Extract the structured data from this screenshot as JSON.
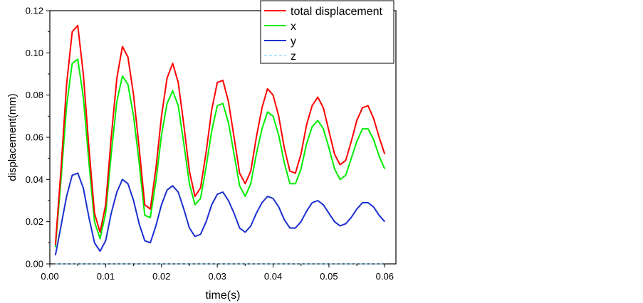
{
  "chart_data": {
    "type": "line",
    "title": "",
    "xlabel": "time(s)",
    "ylabel": "displacement(mm)",
    "xlim": [
      0.0,
      0.062
    ],
    "ylim": [
      0.0,
      0.12
    ],
    "xticks": [
      "0.00",
      "0.01",
      "0.02",
      "0.03",
      "0.04",
      "0.05",
      "0.06"
    ],
    "yticks": [
      "0.00",
      "0.02",
      "0.04",
      "0.06",
      "0.08",
      "0.10",
      "0.12"
    ],
    "grid": false,
    "legend_position": "top-right",
    "x": [
      0.001,
      0.002,
      0.003,
      0.004,
      0.005,
      0.006,
      0.007,
      0.008,
      0.009,
      0.01,
      0.011,
      0.012,
      0.013,
      0.014,
      0.015,
      0.016,
      0.017,
      0.018,
      0.019,
      0.02,
      0.021,
      0.022,
      0.023,
      0.024,
      0.025,
      0.026,
      0.027,
      0.028,
      0.029,
      0.03,
      0.031,
      0.032,
      0.033,
      0.034,
      0.035,
      0.036,
      0.037,
      0.038,
      0.039,
      0.04,
      0.041,
      0.042,
      0.043,
      0.044,
      0.045,
      0.046,
      0.047,
      0.048,
      0.049,
      0.05,
      0.051,
      0.052,
      0.053,
      0.054,
      0.055,
      0.056,
      0.057,
      0.058,
      0.059,
      0.06
    ],
    "series": [
      {
        "name": "total displacement",
        "color": "#ff0000",
        "values": [
          0.009,
          0.045,
          0.085,
          0.11,
          0.113,
          0.09,
          0.055,
          0.024,
          0.015,
          0.028,
          0.06,
          0.088,
          0.103,
          0.098,
          0.08,
          0.055,
          0.028,
          0.026,
          0.045,
          0.07,
          0.088,
          0.095,
          0.086,
          0.066,
          0.044,
          0.032,
          0.036,
          0.053,
          0.073,
          0.086,
          0.087,
          0.077,
          0.06,
          0.043,
          0.038,
          0.044,
          0.06,
          0.074,
          0.083,
          0.08,
          0.07,
          0.055,
          0.044,
          0.043,
          0.052,
          0.066,
          0.075,
          0.079,
          0.074,
          0.063,
          0.052,
          0.047,
          0.049,
          0.058,
          0.068,
          0.074,
          0.075,
          0.069,
          0.06,
          0.052
        ]
      },
      {
        "name": "x",
        "color": "#00ee00",
        "values": [
          0.008,
          0.04,
          0.075,
          0.095,
          0.097,
          0.079,
          0.048,
          0.02,
          0.012,
          0.024,
          0.052,
          0.077,
          0.089,
          0.085,
          0.07,
          0.048,
          0.023,
          0.022,
          0.039,
          0.061,
          0.076,
          0.082,
          0.075,
          0.057,
          0.038,
          0.028,
          0.031,
          0.046,
          0.063,
          0.075,
          0.076,
          0.067,
          0.052,
          0.037,
          0.032,
          0.038,
          0.052,
          0.064,
          0.072,
          0.07,
          0.061,
          0.048,
          0.038,
          0.038,
          0.045,
          0.057,
          0.065,
          0.068,
          0.064,
          0.055,
          0.045,
          0.04,
          0.042,
          0.05,
          0.058,
          0.064,
          0.064,
          0.059,
          0.051,
          0.045
        ]
      },
      {
        "name": "y",
        "color": "#1b2fd0",
        "values": [
          0.004,
          0.018,
          0.032,
          0.042,
          0.043,
          0.036,
          0.022,
          0.01,
          0.006,
          0.011,
          0.024,
          0.034,
          0.04,
          0.038,
          0.03,
          0.019,
          0.011,
          0.01,
          0.018,
          0.028,
          0.035,
          0.037,
          0.034,
          0.026,
          0.017,
          0.013,
          0.014,
          0.02,
          0.028,
          0.033,
          0.034,
          0.03,
          0.024,
          0.017,
          0.015,
          0.018,
          0.024,
          0.029,
          0.032,
          0.031,
          0.027,
          0.021,
          0.017,
          0.017,
          0.02,
          0.025,
          0.029,
          0.03,
          0.028,
          0.024,
          0.02,
          0.018,
          0.019,
          0.022,
          0.026,
          0.029,
          0.029,
          0.027,
          0.023,
          0.02
        ]
      },
      {
        "name": "z",
        "color": "#66ccff",
        "values": [
          0.0,
          0.0,
          0.0,
          0.0,
          0.0,
          0.0,
          0.0,
          0.0,
          0.0,
          0.0,
          0.0,
          0.0,
          0.0,
          0.0,
          0.0,
          0.0,
          0.0,
          0.0,
          0.0,
          0.0,
          0.0,
          0.0,
          0.0,
          0.0,
          0.0,
          0.0,
          0.0,
          0.0,
          0.0,
          0.0,
          0.0,
          0.0,
          0.0,
          0.0,
          0.0,
          0.0,
          0.0,
          0.0,
          0.0,
          0.0,
          0.0,
          0.0,
          0.0,
          0.0,
          0.0,
          0.0,
          0.0,
          0.0,
          0.0,
          0.0,
          0.0,
          0.0,
          0.0,
          0.0,
          0.0,
          0.0,
          0.0,
          0.0,
          0.0,
          0.0
        ]
      }
    ]
  }
}
